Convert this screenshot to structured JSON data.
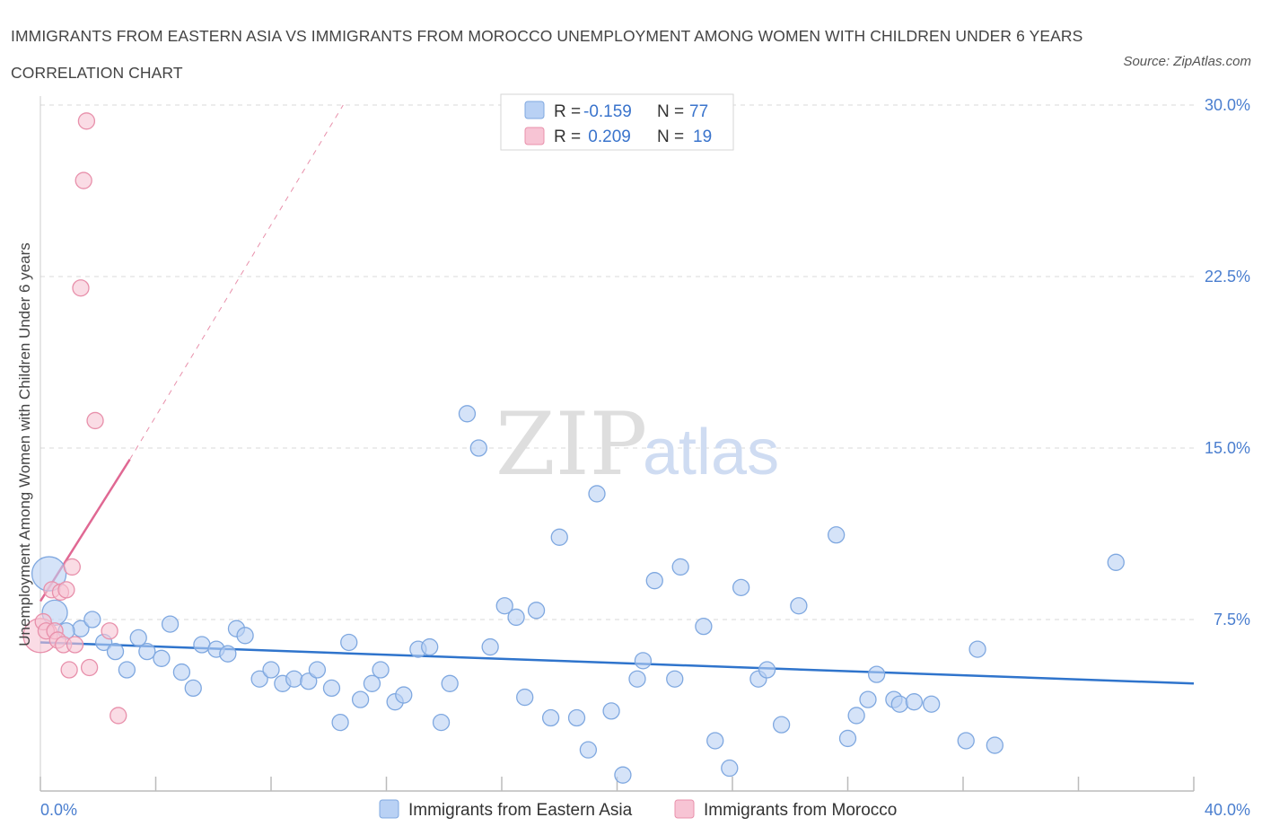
{
  "header": {
    "title": "IMMIGRANTS FROM EASTERN ASIA VS IMMIGRANTS FROM MOROCCO UNEMPLOYMENT AMONG WOMEN WITH CHILDREN UNDER 6 YEARS CORRELATION CHART",
    "source": "Source: ZipAtlas.com"
  },
  "watermark": {
    "zip": "ZIP",
    "atlas": "atlas"
  },
  "legend": {
    "rows": [
      {
        "r_label": "R =",
        "r_value": "-0.159",
        "n_label": "N =",
        "n_value": "77"
      },
      {
        "r_label": "R =",
        "r_value": " 0.209",
        "n_label": "N =",
        "n_value": "19"
      }
    ]
  },
  "bottom_legend": {
    "items": [
      {
        "label": "Immigrants from Eastern Asia"
      },
      {
        "label": "Immigrants from Morocco"
      }
    ]
  },
  "colors": {
    "blue_fill": "#b9d1f4",
    "blue_stroke": "#7fa8e0",
    "blue_line": "#2f74cc",
    "pink_fill": "#f7c4d4",
    "pink_stroke": "#e890ab",
    "pink_line": "#e06893",
    "grid": "#d9d9d9",
    "tick_label": "#4a7ecf"
  },
  "chart_data": {
    "type": "scatter",
    "title": "IMMIGRANTS FROM EASTERN ASIA VS IMMIGRANTS FROM MOROCCO UNEMPLOYMENT AMONG WOMEN WITH CHILDREN UNDER 6 YEARS CORRELATION CHART",
    "xlabel": "",
    "ylabel": "Unemployment Among Women with Children Under 6 years",
    "xlim": [
      0,
      40
    ],
    "ylim": [
      0,
      30
    ],
    "x_tick_labels": [
      "0.0%",
      "40.0%"
    ],
    "y_tick_labels": [
      "7.5%",
      "15.0%",
      "22.5%",
      "30.0%"
    ],
    "y_ticks": [
      7.5,
      15.0,
      22.5,
      30.0
    ],
    "grid": true,
    "legend_position": "top-center",
    "series": [
      {
        "name": "Immigrants from Eastern Asia",
        "color": "#b9d1f4",
        "r": -0.159,
        "n": 77,
        "trend": {
          "x": [
            0.0,
            40.0
          ],
          "y": [
            6.5,
            4.7
          ]
        },
        "points": [
          {
            "x": 0.3,
            "y": 9.5,
            "big": 2
          },
          {
            "x": 0.5,
            "y": 7.8,
            "big": 1
          },
          {
            "x": 1.4,
            "y": 7.1
          },
          {
            "x": 1.8,
            "y": 7.5
          },
          {
            "x": 2.2,
            "y": 6.5
          },
          {
            "x": 2.6,
            "y": 6.1
          },
          {
            "x": 3.0,
            "y": 5.3
          },
          {
            "x": 3.4,
            "y": 6.7
          },
          {
            "x": 3.7,
            "y": 6.1
          },
          {
            "x": 4.2,
            "y": 5.8
          },
          {
            "x": 4.5,
            "y": 7.3
          },
          {
            "x": 4.9,
            "y": 5.2
          },
          {
            "x": 5.3,
            "y": 4.5
          },
          {
            "x": 5.6,
            "y": 6.4
          },
          {
            "x": 6.1,
            "y": 6.2
          },
          {
            "x": 6.5,
            "y": 6.0
          },
          {
            "x": 6.8,
            "y": 7.1
          },
          {
            "x": 7.1,
            "y": 6.8
          },
          {
            "x": 7.6,
            "y": 4.9
          },
          {
            "x": 8.0,
            "y": 5.3
          },
          {
            "x": 8.4,
            "y": 4.7
          },
          {
            "x": 8.8,
            "y": 4.9
          },
          {
            "x": 9.3,
            "y": 4.8
          },
          {
            "x": 9.6,
            "y": 5.3
          },
          {
            "x": 10.1,
            "y": 4.5
          },
          {
            "x": 10.4,
            "y": 3.0
          },
          {
            "x": 10.7,
            "y": 6.5
          },
          {
            "x": 11.1,
            "y": 4.0
          },
          {
            "x": 11.5,
            "y": 4.7
          },
          {
            "x": 11.8,
            "y": 5.3
          },
          {
            "x": 12.3,
            "y": 3.9
          },
          {
            "x": 12.6,
            "y": 4.2
          },
          {
            "x": 13.1,
            "y": 6.2
          },
          {
            "x": 13.5,
            "y": 6.3
          },
          {
            "x": 13.9,
            "y": 3.0
          },
          {
            "x": 14.2,
            "y": 4.7
          },
          {
            "x": 14.8,
            "y": 16.5
          },
          {
            "x": 15.2,
            "y": 15.0
          },
          {
            "x": 15.6,
            "y": 6.3
          },
          {
            "x": 16.1,
            "y": 8.1
          },
          {
            "x": 16.5,
            "y": 7.6
          },
          {
            "x": 16.8,
            "y": 4.1
          },
          {
            "x": 17.2,
            "y": 7.9
          },
          {
            "x": 17.7,
            "y": 3.2
          },
          {
            "x": 18.0,
            "y": 11.1
          },
          {
            "x": 18.6,
            "y": 3.2
          },
          {
            "x": 19.0,
            "y": 1.8
          },
          {
            "x": 19.3,
            "y": 13.0
          },
          {
            "x": 19.8,
            "y": 3.5
          },
          {
            "x": 20.2,
            "y": 0.7
          },
          {
            "x": 20.7,
            "y": 4.9
          },
          {
            "x": 20.9,
            "y": 5.7
          },
          {
            "x": 21.3,
            "y": 9.2
          },
          {
            "x": 22.0,
            "y": 4.9
          },
          {
            "x": 22.2,
            "y": 9.8
          },
          {
            "x": 23.0,
            "y": 7.2
          },
          {
            "x": 23.4,
            "y": 2.2
          },
          {
            "x": 23.9,
            "y": 1.0
          },
          {
            "x": 24.3,
            "y": 8.9
          },
          {
            "x": 24.9,
            "y": 4.9
          },
          {
            "x": 25.2,
            "y": 5.3
          },
          {
            "x": 25.7,
            "y": 2.9
          },
          {
            "x": 26.3,
            "y": 8.1
          },
          {
            "x": 27.6,
            "y": 11.2
          },
          {
            "x": 28.0,
            "y": 2.3
          },
          {
            "x": 28.3,
            "y": 3.3
          },
          {
            "x": 28.7,
            "y": 4.0
          },
          {
            "x": 29.0,
            "y": 5.1
          },
          {
            "x": 29.6,
            "y": 4.0
          },
          {
            "x": 29.8,
            "y": 3.8
          },
          {
            "x": 30.3,
            "y": 3.9
          },
          {
            "x": 30.9,
            "y": 3.8
          },
          {
            "x": 32.1,
            "y": 2.2
          },
          {
            "x": 32.5,
            "y": 6.2
          },
          {
            "x": 33.1,
            "y": 2.0
          },
          {
            "x": 37.3,
            "y": 10.0
          },
          {
            "x": 0.9,
            "y": 7.0
          }
        ]
      },
      {
        "name": "Immigrants from Morocco",
        "color": "#f7c4d4",
        "r": 0.209,
        "n": 19,
        "trend": {
          "x": [
            0.0,
            3.1
          ],
          "y": [
            8.3,
            14.5
          ]
        },
        "trend_extended": {
          "x": [
            3.1,
            10.5
          ],
          "y": [
            14.5,
            30.0
          ]
        },
        "points": [
          {
            "x": 0.0,
            "y": 6.8,
            "big": 2
          },
          {
            "x": 0.1,
            "y": 7.4
          },
          {
            "x": 0.2,
            "y": 7.0
          },
          {
            "x": 0.4,
            "y": 8.8
          },
          {
            "x": 0.5,
            "y": 7.0
          },
          {
            "x": 0.6,
            "y": 6.6
          },
          {
            "x": 0.7,
            "y": 8.7
          },
          {
            "x": 0.8,
            "y": 6.4
          },
          {
            "x": 0.9,
            "y": 8.8
          },
          {
            "x": 1.0,
            "y": 5.3
          },
          {
            "x": 1.1,
            "y": 9.8
          },
          {
            "x": 1.2,
            "y": 6.4
          },
          {
            "x": 1.4,
            "y": 22.0
          },
          {
            "x": 1.5,
            "y": 26.7
          },
          {
            "x": 1.6,
            "y": 29.3
          },
          {
            "x": 1.7,
            "y": 5.4
          },
          {
            "x": 1.9,
            "y": 16.2
          },
          {
            "x": 2.4,
            "y": 7.0
          },
          {
            "x": 2.7,
            "y": 3.3
          }
        ]
      }
    ]
  }
}
